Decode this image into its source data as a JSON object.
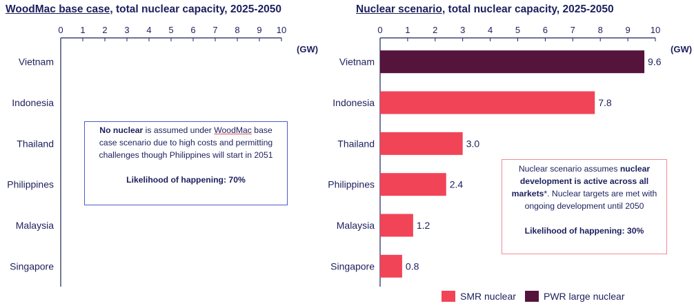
{
  "colors": {
    "smr": "#f24457",
    "pwr": "#55143c",
    "axis": "#1c1f5c",
    "left_box_border": "#4a5bc4",
    "right_box_border": "#f08c96"
  },
  "unit_label": "(GW)",
  "left_panel": {
    "title_main": "WoodMac base case",
    "title_rest": ", total nuclear capacity, 2025-2050",
    "note": {
      "bold_lead": "No nuclear",
      "text_a": " is assumed under ",
      "underlined": "WoodMac",
      "text_b": " base case scenario due to high costs and permitting challenges though Philippines will start in 2051",
      "likelihood": "Likelihood of happening: 70%"
    }
  },
  "right_panel": {
    "title_main": "Nuclear scenario",
    "title_rest": ", total nuclear capacity, 2025-2050",
    "note": {
      "text_a": "Nuclear scenario assumes ",
      "bold": "nuclear development is active across all markets",
      "text_b": "*. Nuclear targets are met with ongoing development until 2050",
      "likelihood": "Likelihood of happening: 30%"
    }
  },
  "legend": {
    "smr_label": "SMR nuclear",
    "pwr_label": "PWR large nuclear"
  },
  "chart_data": [
    {
      "type": "bar",
      "orientation": "horizontal",
      "title": "WoodMac base case, total nuclear capacity, 2025-2050",
      "xlabel": "(GW)",
      "xlim": [
        0,
        10
      ],
      "xticks": [
        0,
        1,
        2,
        3,
        4,
        5,
        6,
        7,
        8,
        9,
        10
      ],
      "categories": [
        "Vietnam",
        "Indonesia",
        "Thailand",
        "Philippines",
        "Malaysia",
        "Singapore"
      ],
      "series": [
        {
          "name": "SMR nuclear",
          "values": [
            0,
            0,
            0,
            0,
            0,
            0
          ]
        },
        {
          "name": "PWR large nuclear",
          "values": [
            0,
            0,
            0,
            0,
            0,
            0
          ]
        }
      ]
    },
    {
      "type": "bar",
      "orientation": "horizontal",
      "title": "Nuclear scenario, total nuclear capacity, 2025-2050",
      "xlabel": "(GW)",
      "xlim": [
        0,
        10
      ],
      "xticks": [
        0,
        1,
        2,
        3,
        4,
        5,
        6,
        7,
        8,
        9,
        10
      ],
      "categories": [
        "Vietnam",
        "Indonesia",
        "Thailand",
        "Philippines",
        "Malaysia",
        "Singapore"
      ],
      "series": [
        {
          "name": "SMR nuclear",
          "values": [
            0,
            7.8,
            3.0,
            2.4,
            1.2,
            0.8
          ]
        },
        {
          "name": "PWR large nuclear",
          "values": [
            9.6,
            0,
            0,
            0,
            0,
            0
          ]
        }
      ],
      "data_labels": [
        "9.6",
        "7.8",
        "3.0",
        "2.4",
        "1.2",
        "0.8"
      ]
    }
  ]
}
